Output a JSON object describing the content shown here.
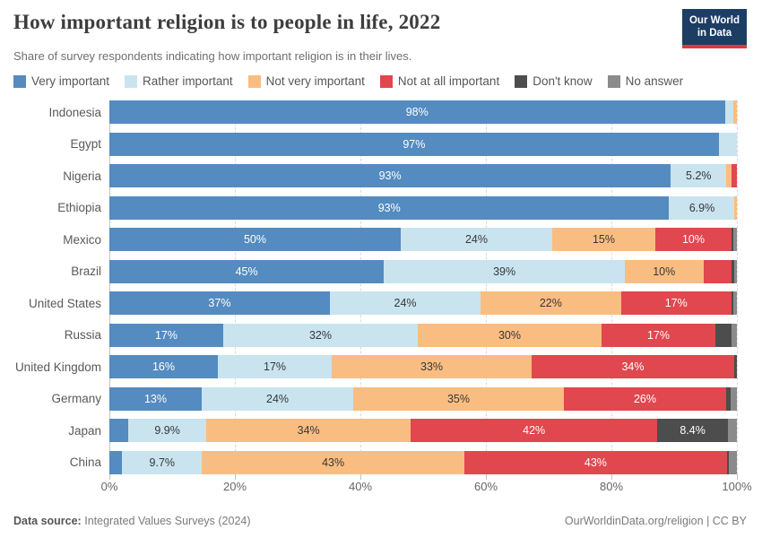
{
  "header": {
    "title": "How important religion is to people in life, 2022",
    "subtitle": "Share of survey respondents indicating how important religion is in their lives.",
    "logo_line1": "Our World",
    "logo_line2": "in Data"
  },
  "palette": {
    "very": "#548bc0",
    "rather": "#c9e4ef",
    "notvery": "#fabd81",
    "notatall": "#e0474e",
    "dontknow": "#4d4d4d",
    "noanswer": "#8b8b8b"
  },
  "legend": [
    {
      "key": "very",
      "label": "Very important"
    },
    {
      "key": "rather",
      "label": "Rather important"
    },
    {
      "key": "notvery",
      "label": "Not very important"
    },
    {
      "key": "notatall",
      "label": "Not at all important"
    },
    {
      "key": "dontknow",
      "label": "Don't know"
    },
    {
      "key": "noanswer",
      "label": "No answer"
    }
  ],
  "chart_data": {
    "type": "bar",
    "stacked": true,
    "orientation": "horizontal",
    "unit": "%",
    "title": "How important religion is to people in life, 2022",
    "xlim": [
      0,
      100
    ],
    "grid": "vertical-dashed",
    "legend_position": "top",
    "categories": [
      "Indonesia",
      "Egypt",
      "Nigeria",
      "Ethiopia",
      "Mexico",
      "Brazil",
      "United States",
      "Russia",
      "United Kingdom",
      "Germany",
      "Japan",
      "China"
    ],
    "xticks": [
      {
        "label": "0%",
        "value": 0
      },
      {
        "label": "20%",
        "value": 20
      },
      {
        "label": "40%",
        "value": 40
      },
      {
        "label": "60%",
        "value": 60
      },
      {
        "label": "80%",
        "value": 80
      },
      {
        "label": "100%",
        "value": 100
      }
    ],
    "series": [
      {
        "key": "very",
        "name": "Very important",
        "label_style": "light",
        "values": [
          98,
          97,
          93,
          93,
          50,
          45,
          37,
          17,
          16,
          13,
          3.5,
          2.3
        ],
        "labels": [
          "98%",
          "97%",
          "93%",
          "93%",
          "50%",
          "45%",
          "37%",
          "17%",
          "16%",
          "13%",
          "",
          ""
        ]
      },
      {
        "key": "rather",
        "name": "Rather important",
        "label_style": "dark",
        "values": [
          1.4,
          3,
          5.2,
          6.9,
          24,
          39,
          24,
          32,
          17,
          24,
          9.9,
          9.7
        ],
        "labels": [
          "",
          "",
          "5.2%",
          "6.9%",
          "24%",
          "39%",
          "24%",
          "32%",
          "17%",
          "24%",
          "9.9%",
          "9.7%"
        ]
      },
      {
        "key": "notvery",
        "name": "Not very important",
        "label_style": "dark",
        "values": [
          0.6,
          0,
          0.8,
          0.4,
          15,
          10,
          22,
          30,
          33,
          35,
          34,
          43
        ],
        "labels": [
          "",
          "",
          "",
          "",
          "15%",
          "10%",
          "22%",
          "30%",
          "33%",
          "35%",
          "34%",
          "43%"
        ]
      },
      {
        "key": "notatall",
        "name": "Not at all important",
        "label_style": "light",
        "values": [
          0,
          0,
          1.0,
          0,
          10,
          5,
          16.5,
          17,
          33.5,
          26,
          42,
          43
        ],
        "labels": [
          "",
          "",
          "",
          "",
          "10%",
          "",
          "17%",
          "17%",
          "34%",
          "26%",
          "42%",
          "43%"
        ]
      },
      {
        "key": "dontknow",
        "name": "Don't know",
        "label_style": "light",
        "values": [
          0,
          0,
          0,
          0,
          0.4,
          0.5,
          0.3,
          3,
          0.5,
          0.9,
          8.4,
          0.3
        ],
        "labels": [
          "",
          "",
          "",
          "",
          "",
          "",
          "",
          "",
          "",
          "",
          "8.4%",
          ""
        ]
      },
      {
        "key": "noanswer",
        "name": "No answer",
        "label_style": "light",
        "values": [
          0,
          0,
          0,
          0,
          0.6,
          0.5,
          0.7,
          1,
          0,
          1.1,
          1.7,
          1.5
        ],
        "labels": [
          "",
          "",
          "",
          "",
          "",
          "",
          "",
          "",
          "",
          "",
          "",
          ""
        ]
      }
    ]
  },
  "footer": {
    "source_label": "Data source:",
    "source_value": "Integrated Values Surveys (2024)",
    "license": "OurWorldinData.org/religion | CC BY"
  }
}
